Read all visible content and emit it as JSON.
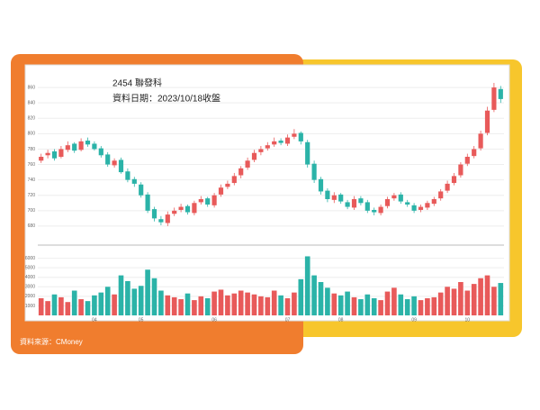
{
  "chart_data": {
    "type": "candlestick",
    "title": "2454 聯發科",
    "subtitle": "資料日期：2023/10/18收盤",
    "source": "資料來源：CMoney",
    "categories": [
      null,
      null,
      null,
      null,
      null,
      null,
      null,
      null,
      "04",
      null,
      null,
      null,
      null,
      null,
      null,
      "05",
      null,
      null,
      null,
      null,
      null,
      null,
      null,
      null,
      null,
      null,
      "06",
      null,
      null,
      null,
      null,
      null,
      null,
      null,
      null,
      null,
      null,
      "07",
      null,
      null,
      null,
      null,
      null,
      null,
      null,
      "08",
      null,
      null,
      null,
      null,
      null,
      null,
      null,
      null,
      null,
      null,
      "09",
      null,
      null,
      null,
      null,
      null,
      null,
      null,
      "10",
      null,
      null,
      null,
      null,
      null
    ],
    "open": [
      765,
      772,
      777,
      770,
      779,
      787,
      779,
      791,
      787,
      781,
      773,
      759,
      766,
      751,
      741,
      734,
      721,
      702,
      689,
      684,
      696,
      701,
      706,
      697,
      711,
      716,
      707,
      721,
      731,
      736,
      746,
      756,
      766,
      776,
      781,
      786,
      791,
      787,
      796,
      801,
      789,
      761,
      741,
      726,
      714,
      721,
      711,
      704,
      716,
      711,
      701,
      697,
      706,
      716,
      721,
      711,
      707,
      701,
      704,
      709,
      716,
      726,
      736,
      746,
      761,
      771,
      781,
      801,
      831,
      858
    ],
    "high": [
      774,
      779,
      780,
      784,
      790,
      789,
      794,
      795,
      790,
      784,
      776,
      768,
      769,
      755,
      744,
      737,
      724,
      705,
      693,
      699,
      704,
      709,
      708,
      713,
      719,
      718,
      723,
      734,
      739,
      749,
      758,
      769,
      779,
      784,
      789,
      795,
      794,
      799,
      806,
      803,
      792,
      765,
      744,
      729,
      724,
      723,
      714,
      719,
      719,
      714,
      704,
      708,
      718,
      723,
      724,
      714,
      710,
      708,
      713,
      718,
      728,
      739,
      749,
      763,
      774,
      784,
      804,
      835,
      866,
      862
    ],
    "low": [
      762,
      768,
      765,
      768,
      776,
      775,
      777,
      783,
      778,
      769,
      757,
      756,
      748,
      737,
      731,
      717,
      697,
      686,
      681,
      680,
      693,
      698,
      695,
      694,
      708,
      705,
      704,
      718,
      728,
      733,
      742,
      753,
      763,
      772,
      778,
      783,
      785,
      784,
      793,
      786,
      756,
      736,
      721,
      711,
      710,
      709,
      702,
      701,
      707,
      697,
      694,
      694,
      703,
      713,
      709,
      705,
      697,
      698,
      701,
      706,
      713,
      723,
      733,
      743,
      758,
      768,
      778,
      798,
      828,
      840
    ],
    "close": [
      770,
      775,
      768,
      780,
      785,
      778,
      790,
      786,
      780,
      772,
      760,
      765,
      750,
      740,
      735,
      720,
      700,
      690,
      685,
      695,
      700,
      705,
      698,
      710,
      715,
      708,
      720,
      730,
      735,
      745,
      755,
      765,
      775,
      780,
      785,
      790,
      788,
      795,
      800,
      790,
      760,
      740,
      725,
      715,
      720,
      712,
      705,
      715,
      710,
      700,
      698,
      705,
      715,
      720,
      712,
      708,
      700,
      705,
      710,
      715,
      725,
      735,
      745,
      760,
      770,
      780,
      800,
      830,
      860,
      845
    ],
    "volume": [
      1800,
      1500,
      2200,
      1900,
      1400,
      2600,
      1700,
      1500,
      2100,
      2400,
      3000,
      2200,
      4200,
      3600,
      2800,
      3100,
      4800,
      3900,
      2600,
      2100,
      1900,
      1700,
      2300,
      1600,
      2000,
      1800,
      2500,
      2700,
      2100,
      2300,
      2600,
      2400,
      2200,
      2000,
      1900,
      2600,
      2100,
      1800,
      2400,
      3800,
      6200,
      4200,
      3500,
      2900,
      2300,
      2100,
      2500,
      1900,
      1700,
      2200,
      1800,
      1600,
      2500,
      2900,
      2200,
      1700,
      2000,
      1600,
      1800,
      1900,
      2400,
      3000,
      2800,
      3500,
      2600,
      3300,
      3900,
      4200,
      3000,
      3400
    ],
    "up_color": "#e85a5a",
    "down_color": "#2bb3a8",
    "ylim": [
      660,
      880
    ],
    "yticks": [
      680,
      700,
      720,
      740,
      760,
      780,
      800,
      820,
      840,
      860
    ],
    "volume_ylim": [
      0,
      7000
    ],
    "volume_yticks": [
      1000,
      2000,
      3000,
      4000,
      5000,
      6000
    ],
    "grid": true
  }
}
